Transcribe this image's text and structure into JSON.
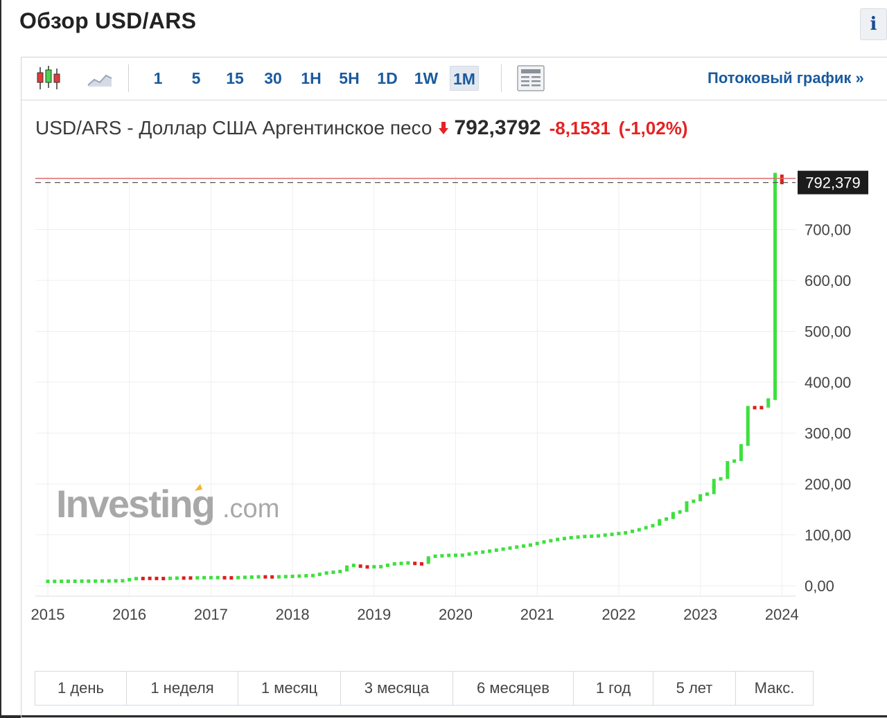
{
  "header": {
    "title": "Обзор USD/ARS",
    "info_label": "i"
  },
  "toolbar": {
    "icons": [
      "candlestick-chart-icon",
      "area-chart-icon",
      "table-view-icon"
    ],
    "intervals": [
      "1",
      "5",
      "15",
      "30",
      "1H",
      "5H",
      "1D",
      "1W",
      "1M"
    ],
    "active_interval": "1M",
    "stream_link": "Потоковый график »"
  },
  "quote": {
    "name": "USD/ARS - Доллар США Аргентинское песо",
    "price": "792,3792",
    "change": "-8,1531",
    "change_pct": "(-1,02%)",
    "direction": "down"
  },
  "watermark": {
    "brand": "Investing",
    "suffix": ".com"
  },
  "periods": [
    "1 день",
    "1 неделя",
    "1 месяц",
    "3 месяца",
    "6 месяцев",
    "1 год",
    "5 лет",
    "Макс."
  ],
  "colors": {
    "up": "#3ee03e",
    "down": "#dd1f1f",
    "accent": "#1a5a9e",
    "price_line": "#e06666",
    "price_tag_bg": "#1c1c1c"
  },
  "chart_data": {
    "type": "line",
    "title": "",
    "xlabel": "",
    "ylabel": "",
    "x_ticks": [
      "2015",
      "2016",
      "2017",
      "2018",
      "2019",
      "2020",
      "2021",
      "2022",
      "2023",
      "2024"
    ],
    "y_ticks": [
      "0,00",
      "100,00",
      "200,00",
      "300,00",
      "400,00",
      "500,00",
      "600,00",
      "700,00"
    ],
    "ylim": [
      0,
      792.379
    ],
    "last_price_label": "792,379",
    "grid": true,
    "interval": "monthly",
    "series": [
      {
        "x": [
          "2015-01",
          "2015-03",
          "2015-05",
          "2015-07",
          "2015-09",
          "2015-11",
          "2016-01",
          "2016-03",
          "2016-05",
          "2016-07",
          "2016-09",
          "2016-11",
          "2017-01",
          "2017-03",
          "2017-05",
          "2017-07",
          "2017-09",
          "2017-11",
          "2018-01",
          "2018-03",
          "2018-05",
          "2018-07",
          "2018-09",
          "2018-11",
          "2019-01",
          "2019-03",
          "2019-05",
          "2019-07",
          "2019-09",
          "2019-11",
          "2020-01",
          "2020-03",
          "2020-05",
          "2020-07",
          "2020-09",
          "2020-11",
          "2021-01",
          "2021-03",
          "2021-05",
          "2021-07",
          "2021-09",
          "2021-11",
          "2022-01",
          "2022-03",
          "2022-05",
          "2022-07",
          "2022-09",
          "2022-11",
          "2023-01",
          "2023-03",
          "2023-05",
          "2023-07",
          "2023-08",
          "2023-09",
          "2023-11",
          "2023-12",
          "2024-01"
        ],
        "values": [
          8.6,
          8.8,
          9.0,
          9.2,
          9.4,
          9.8,
          14.0,
          14.5,
          14.2,
          15.0,
          15.2,
          15.8,
          16.0,
          15.5,
          16.5,
          17.5,
          17.3,
          17.9,
          19.0,
          20.0,
          25.0,
          28.0,
          40.0,
          37.0,
          37.5,
          43.0,
          44.8,
          43.0,
          58.0,
          59.7,
          60.0,
          64.5,
          68.0,
          72.0,
          76.0,
          80.0,
          86.0,
          91.0,
          94.5,
          96.8,
          98.0,
          101.0,
          104.0,
          110.0,
          118.0,
          131.0,
          145.0,
          166.0,
          180.0,
          210.0,
          245.0,
          275.0,
          350.0,
          350.0,
          365.0,
          808.0,
          792.379
        ],
        "direction": [
          "up",
          "up",
          "up",
          "up",
          "up",
          "up",
          "up",
          "down",
          "down",
          "up",
          "down",
          "up",
          "up",
          "down",
          "up",
          "up",
          "down",
          "up",
          "up",
          "up",
          "up",
          "up",
          "up",
          "down",
          "up",
          "up",
          "up",
          "down",
          "up",
          "up",
          "up",
          "up",
          "up",
          "up",
          "up",
          "up",
          "up",
          "up",
          "up",
          "up",
          "up",
          "up",
          "up",
          "up",
          "up",
          "up",
          "up",
          "up",
          "up",
          "up",
          "up",
          "up",
          "up",
          "down",
          "up",
          "up",
          "down"
        ]
      }
    ]
  }
}
